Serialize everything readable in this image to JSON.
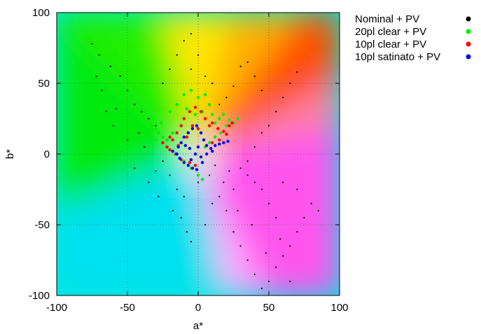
{
  "chart_data": {
    "type": "scatter",
    "title": "",
    "xlabel": "a*",
    "ylabel": "b*",
    "xlim": [
      -100,
      100
    ],
    "ylim": [
      -100,
      100
    ],
    "x_ticks": [
      "-100",
      "-50",
      "0",
      "50",
      "100"
    ],
    "y_ticks": [
      "100",
      "50",
      "0",
      "-50",
      "-100"
    ],
    "grid": "dotted",
    "background": "a*b* color plane (hue gradient)",
    "legend_position": "top-right, outside plot",
    "series": [
      {
        "name": "Nominal + PV",
        "color": "#000000",
        "spread": "wide gamut cloud, a* from about -80 to 85, b* from about -95 to 85",
        "points": [
          [
            -75,
            78
          ],
          [
            -70,
            70
          ],
          [
            -62,
            62
          ],
          [
            -55,
            55
          ],
          [
            -68,
            45
          ],
          [
            -50,
            45
          ],
          [
            -45,
            35
          ],
          [
            -40,
            30
          ],
          [
            -58,
            32
          ],
          [
            -35,
            25
          ],
          [
            -30,
            20
          ],
          [
            -42,
            15
          ],
          [
            -50,
            10
          ],
          [
            -38,
            5
          ],
          [
            -25,
            -5
          ],
          [
            -30,
            -12
          ],
          [
            -35,
            -20
          ],
          [
            -20,
            -15
          ],
          [
            -15,
            -25
          ],
          [
            -10,
            -30
          ],
          [
            -12,
            -45
          ],
          [
            -8,
            -55
          ],
          [
            -5,
            -62
          ],
          [
            5,
            -50
          ],
          [
            10,
            -35
          ],
          [
            15,
            -30
          ],
          [
            20,
            -40
          ],
          [
            25,
            -55
          ],
          [
            30,
            -65
          ],
          [
            35,
            -75
          ],
          [
            40,
            -85
          ],
          [
            45,
            -95
          ],
          [
            50,
            -90
          ],
          [
            55,
            -80
          ],
          [
            60,
            -72
          ],
          [
            65,
            -65
          ],
          [
            70,
            -55
          ],
          [
            75,
            -45
          ],
          [
            80,
            -35
          ],
          [
            85,
            -40
          ],
          [
            55,
            -45
          ],
          [
            50,
            -35
          ],
          [
            45,
            -25
          ],
          [
            40,
            -20
          ],
          [
            35,
            -15
          ],
          [
            30,
            -10
          ],
          [
            60,
            -20
          ],
          [
            70,
            -25
          ],
          [
            35,
            -5
          ],
          [
            40,
            5
          ],
          [
            45,
            15
          ],
          [
            50,
            20
          ],
          [
            55,
            30
          ],
          [
            60,
            40
          ],
          [
            65,
            50
          ],
          [
            70,
            58
          ],
          [
            45,
            45
          ],
          [
            40,
            55
          ],
          [
            35,
            65
          ],
          [
            30,
            62
          ],
          [
            25,
            48
          ],
          [
            20,
            40
          ],
          [
            15,
            35
          ],
          [
            10,
            50
          ],
          [
            -5,
            85
          ],
          [
            -10,
            80
          ],
          [
            -15,
            70
          ],
          [
            -20,
            60
          ],
          [
            -25,
            50
          ],
          [
            -5,
            60
          ],
          [
            0,
            70
          ],
          [
            5,
            55
          ],
          [
            -60,
            20
          ],
          [
            -65,
            30
          ],
          [
            -72,
            55
          ],
          [
            -45,
            -10
          ],
          [
            -28,
            -30
          ],
          [
            -18,
            -40
          ],
          [
            0,
            -20
          ],
          [
            8,
            -15
          ],
          [
            18,
            -20
          ],
          [
            25,
            -25
          ],
          [
            65,
            -90
          ],
          [
            58,
            -60
          ],
          [
            48,
            -70
          ],
          [
            38,
            -50
          ],
          [
            28,
            -40
          ],
          [
            22,
            -12
          ],
          [
            12,
            -8
          ]
        ]
      },
      {
        "name": "20pl clear + PV",
        "color": "#00ee00",
        "spread": "a* from about -35 to 30, b* from about -20 to 50",
        "points": [
          [
            -33,
            20
          ],
          [
            -30,
            18
          ],
          [
            -28,
            15
          ],
          [
            -25,
            12
          ],
          [
            -22,
            10
          ],
          [
            -30,
            10
          ],
          [
            -26,
            22
          ],
          [
            -20,
            30
          ],
          [
            -15,
            35
          ],
          [
            -10,
            42
          ],
          [
            -5,
            45
          ],
          [
            0,
            40
          ],
          [
            5,
            42
          ],
          [
            -8,
            32
          ],
          [
            -2,
            28
          ],
          [
            3,
            30
          ],
          [
            8,
            35
          ],
          [
            10,
            28
          ],
          [
            12,
            22
          ],
          [
            15,
            25
          ],
          [
            18,
            28
          ],
          [
            22,
            24
          ],
          [
            25,
            22
          ],
          [
            28,
            25
          ],
          [
            20,
            20
          ],
          [
            16,
            15
          ],
          [
            12,
            12
          ],
          [
            8,
            8
          ],
          [
            -12,
            20
          ],
          [
            -18,
            15
          ],
          [
            -22,
            5
          ],
          [
            -15,
            0
          ],
          [
            -10,
            -5
          ],
          [
            -5,
            -10
          ],
          [
            0,
            -15
          ],
          [
            3,
            -18
          ],
          [
            -2,
            -8
          ],
          [
            5,
            5
          ]
        ]
      },
      {
        "name": "10pl clear + PV",
        "color": "#ff0000",
        "spread": "a* from about -28 to 25, b* from about -10 to 35",
        "points": [
          [
            -25,
            8
          ],
          [
            -22,
            5
          ],
          [
            -20,
            3
          ],
          [
            -18,
            10
          ],
          [
            -15,
            15
          ],
          [
            -12,
            20
          ],
          [
            -10,
            25
          ],
          [
            -6,
            30
          ],
          [
            -2,
            33
          ],
          [
            2,
            30
          ],
          [
            5,
            25
          ],
          [
            8,
            20
          ],
          [
            10,
            22
          ],
          [
            14,
            18
          ],
          [
            18,
            16
          ],
          [
            22,
            20
          ],
          [
            24,
            22
          ],
          [
            20,
            14
          ],
          [
            15,
            10
          ],
          [
            10,
            8
          ],
          [
            6,
            6
          ],
          [
            -8,
            12
          ],
          [
            -14,
            6
          ],
          [
            -16,
            0
          ],
          [
            -12,
            -4
          ],
          [
            -6,
            -6
          ],
          [
            -2,
            -8
          ],
          [
            -20,
            12
          ],
          [
            -4,
            20
          ],
          [
            0,
            18
          ]
        ]
      },
      {
        "name": "10pl satinato + PV",
        "color": "#0000ff",
        "spread": "a* from about -20 to 22, b* from about -12 to 22",
        "points": [
          [
            -18,
            2
          ],
          [
            -15,
            0
          ],
          [
            -13,
            -3
          ],
          [
            -10,
            -6
          ],
          [
            -7,
            -8
          ],
          [
            -4,
            -10
          ],
          [
            -1,
            -11
          ],
          [
            -14,
            5
          ],
          [
            -12,
            8
          ],
          [
            -10,
            12
          ],
          [
            -7,
            15
          ],
          [
            -4,
            18
          ],
          [
            -1,
            20
          ],
          [
            2,
            15
          ],
          [
            4,
            10
          ],
          [
            6,
            6
          ],
          [
            9,
            4
          ],
          [
            12,
            6
          ],
          [
            15,
            7
          ],
          [
            18,
            8
          ],
          [
            21,
            9
          ],
          [
            10,
            2
          ],
          [
            6,
            0
          ],
          [
            2,
            -2
          ],
          [
            -2,
            0
          ],
          [
            -6,
            4
          ],
          [
            -9,
            6
          ],
          [
            -5,
            -4
          ],
          [
            0,
            5
          ],
          [
            3,
            -6
          ]
        ]
      }
    ]
  }
}
